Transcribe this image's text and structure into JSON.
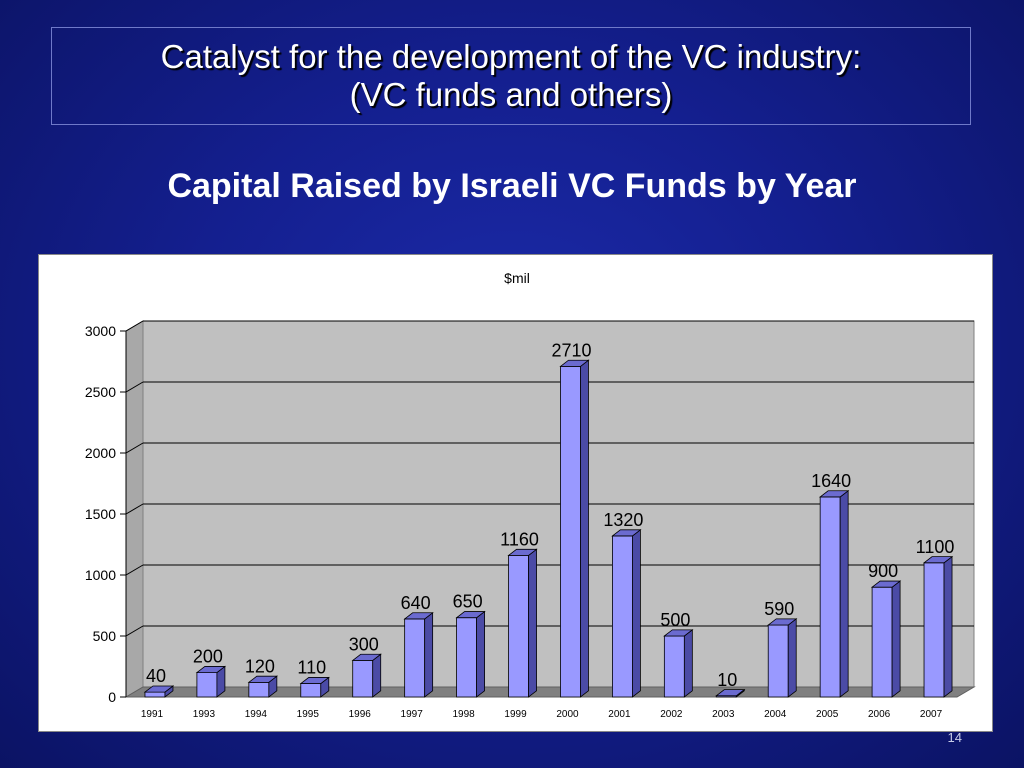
{
  "slide": {
    "title_line1": "Catalyst for the development of the VC industry:",
    "title_line2": "(VC funds and others)",
    "subtitle": "Capital Raised by Israeli VC Funds by Year",
    "page_number": "14"
  },
  "colors": {
    "bar_front": "#9999ff",
    "bar_side": "#4b4ba6",
    "bar_top": "#6b6bd0",
    "plot_back": "#c0c0c0",
    "plot_floor": "#808080"
  },
  "chart_data": {
    "type": "bar",
    "title": "$mil",
    "xlabel": "",
    "ylabel": "",
    "categories": [
      "1991",
      "1993",
      "1994",
      "1995",
      "1996",
      "1997",
      "1998",
      "1999",
      "2000",
      "2001",
      "2002",
      "2003",
      "2004",
      "2005",
      "2006",
      "2007"
    ],
    "values": [
      40,
      200,
      120,
      110,
      300,
      640,
      650,
      1160,
      2710,
      1320,
      500,
      10,
      590,
      1640,
      900,
      1100
    ],
    "yticks": [
      "0",
      "500",
      "1000",
      "1500",
      "2000",
      "2500",
      "3000"
    ],
    "ylim": [
      0,
      3000
    ],
    "grid": true,
    "legend": "none",
    "data_labels": true,
    "style": "3d"
  }
}
